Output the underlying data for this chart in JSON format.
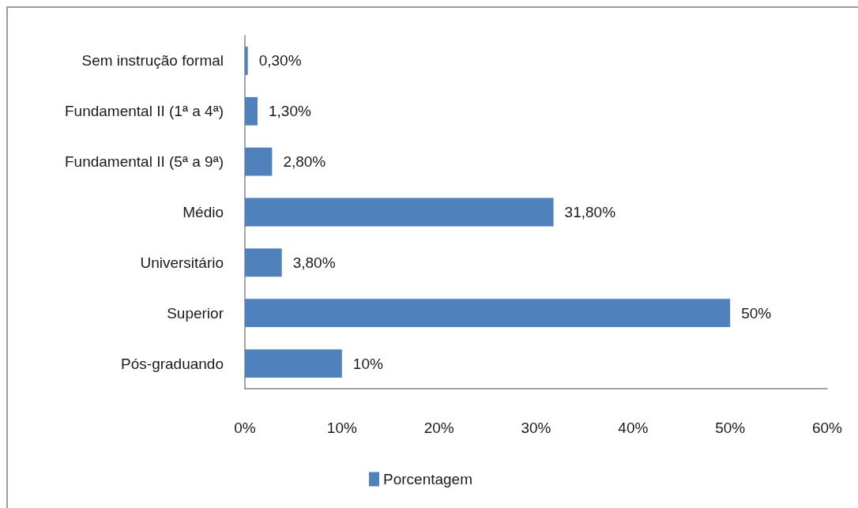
{
  "chart_data": {
    "type": "bar",
    "orientation": "horizontal",
    "categories": [
      "Sem instrução formal",
      "Fundamental II (1ª a 4ª)",
      "Fundamental II (5ª a 9ª)",
      "Médio",
      "Universitário",
      "Superior",
      "Pós-graduando"
    ],
    "series": [
      {
        "name": "Porcentagem",
        "color": "#4f81bd",
        "values": [
          0.3,
          1.3,
          2.8,
          31.8,
          3.8,
          50,
          10
        ],
        "value_labels": [
          "0,30%",
          "1,30%",
          "2,80%",
          "31,80%",
          "3,80%",
          "50%",
          "10%"
        ]
      }
    ],
    "xlim": [
      0,
      60
    ],
    "xticks": [
      {
        "value": 0,
        "label": "0%"
      },
      {
        "value": 10,
        "label": "10%"
      },
      {
        "value": 20,
        "label": "20%"
      },
      {
        "value": 30,
        "label": "30%"
      },
      {
        "value": 40,
        "label": "40%"
      },
      {
        "value": 50,
        "label": "50%"
      },
      {
        "value": 60,
        "label": "60%"
      }
    ],
    "legend": "bottom"
  }
}
